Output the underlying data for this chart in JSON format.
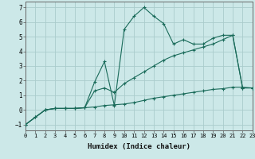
{
  "xlabel": "Humidex (Indice chaleur)",
  "bg_color": "#cce8e8",
  "grid_color": "#aacccc",
  "line_color": "#1a6b5a",
  "series": [
    {
      "x": [
        0,
        1,
        2,
        3,
        4,
        5,
        6,
        7,
        8,
        9,
        10,
        11,
        12,
        13,
        14,
        15,
        16,
        17,
        18,
        19,
        20,
        21,
        22,
        23
      ],
      "y": [
        -1.0,
        -0.5,
        0.0,
        0.1,
        0.1,
        0.1,
        0.15,
        0.2,
        0.3,
        0.35,
        0.4,
        0.5,
        0.65,
        0.8,
        0.9,
        1.0,
        1.1,
        1.2,
        1.3,
        1.4,
        1.45,
        1.55,
        1.55,
        1.5
      ]
    },
    {
      "x": [
        0,
        1,
        2,
        3,
        4,
        5,
        6,
        7,
        8,
        9,
        10,
        11,
        12,
        13,
        14,
        15,
        16,
        17,
        18,
        19,
        20,
        21,
        22,
        23
      ],
      "y": [
        -1.0,
        -0.5,
        0.0,
        0.1,
        0.1,
        0.1,
        0.15,
        1.9,
        3.3,
        0.3,
        5.5,
        6.4,
        7.0,
        6.4,
        5.9,
        4.5,
        4.8,
        4.5,
        4.5,
        4.9,
        5.1,
        5.1,
        1.5,
        1.5
      ]
    },
    {
      "x": [
        0,
        2,
        3,
        4,
        5,
        6,
        7,
        8,
        9,
        10,
        11,
        12,
        13,
        14,
        15,
        16,
        17,
        18,
        19,
        20,
        21,
        22,
        23
      ],
      "y": [
        -1.0,
        0.0,
        0.1,
        0.1,
        0.1,
        0.15,
        1.3,
        1.5,
        1.2,
        1.8,
        2.2,
        2.6,
        3.0,
        3.4,
        3.7,
        3.9,
        4.1,
        4.3,
        4.5,
        4.8,
        5.1,
        1.5,
        1.5
      ]
    }
  ],
  "xlim": [
    0,
    23
  ],
  "ylim": [
    -1.4,
    7.4
  ],
  "yticks": [
    -1,
    0,
    1,
    2,
    3,
    4,
    5,
    6,
    7
  ],
  "xticks": [
    0,
    1,
    2,
    3,
    4,
    5,
    6,
    7,
    8,
    9,
    10,
    11,
    12,
    13,
    14,
    15,
    16,
    17,
    18,
    19,
    20,
    21,
    22,
    23
  ]
}
